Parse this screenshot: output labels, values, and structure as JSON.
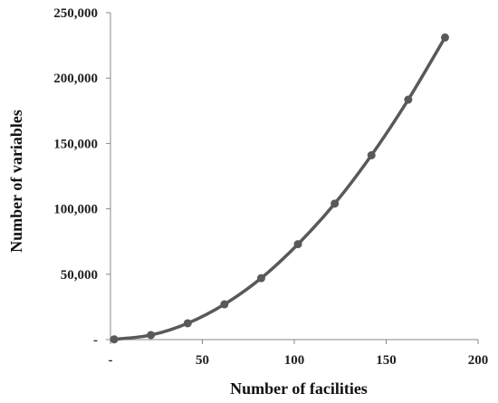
{
  "chart_data": {
    "type": "line",
    "title": "",
    "xlabel": "Number of facilities",
    "ylabel": "Number of variables",
    "xlim": [
      0,
      200
    ],
    "ylim": [
      0,
      250000
    ],
    "x_ticks": [
      {
        "value": 0,
        "label": "-"
      },
      {
        "value": 50,
        "label": "50"
      },
      {
        "value": 100,
        "label": "100"
      },
      {
        "value": 150,
        "label": "150"
      },
      {
        "value": 200,
        "label": "200"
      }
    ],
    "y_ticks": [
      {
        "value": 0,
        "label": "-"
      },
      {
        "value": 50000,
        "label": "50,000"
      },
      {
        "value": 100000,
        "label": "100,000"
      },
      {
        "value": 150000,
        "label": "150,000"
      },
      {
        "value": 200000,
        "label": "200,000"
      },
      {
        "value": 250000,
        "label": "250,000"
      }
    ],
    "grid": false,
    "legend": "none",
    "line_color": "#595959",
    "series": [
      {
        "x": [
          2,
          22,
          42,
          62,
          82,
          102,
          122,
          142,
          162,
          182
        ],
        "values": [
          200,
          3500,
          12500,
          27000,
          47000,
          73000,
          104000,
          141000,
          183500,
          231000
        ]
      }
    ]
  }
}
